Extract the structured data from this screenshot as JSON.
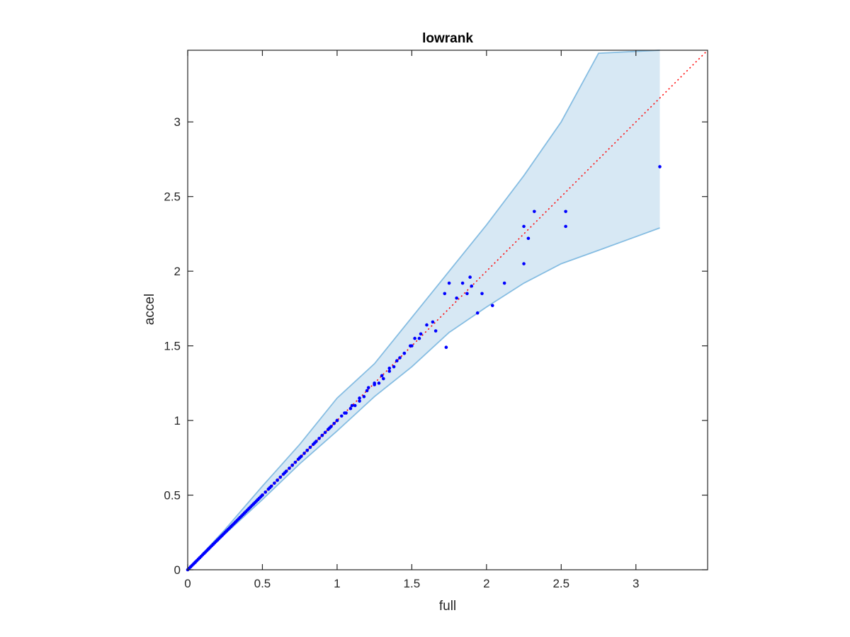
{
  "chart_data": {
    "type": "scatter",
    "title": "lowrank",
    "xlabel": "full",
    "ylabel": "accel",
    "xlim": [
      0,
      3.48
    ],
    "ylim": [
      0,
      3.48
    ],
    "xticks": [
      0,
      0.5,
      1,
      1.5,
      2,
      2.5,
      3
    ],
    "yticks": [
      0,
      0.5,
      1,
      1.5,
      2,
      2.5,
      3
    ],
    "xtick_labels": [
      "0",
      "0.5",
      "1",
      "1.5",
      "2",
      "2.5",
      "3"
    ],
    "ytick_labels": [
      "0",
      "0.5",
      "1",
      "1.5",
      "2",
      "2.5",
      "3"
    ],
    "grid": false,
    "colors": {
      "points": "#0000ff",
      "reference_line": "#ff0000",
      "band_fill": "#d7e8f4",
      "band_edge": "#86bde2",
      "axes": "#262626"
    },
    "reference_line": {
      "style": "dotted",
      "x": [
        0,
        3.48
      ],
      "y": [
        0,
        3.48
      ]
    },
    "band": {
      "x": [
        0,
        0.25,
        0.5,
        0.75,
        1.0,
        1.25,
        1.5,
        1.75,
        2.0,
        2.25,
        2.5,
        2.75,
        3.16
      ],
      "upper": [
        0,
        0.27,
        0.56,
        0.84,
        1.15,
        1.38,
        1.69,
        2.0,
        2.31,
        2.64,
        3.0,
        3.46,
        3.48
      ],
      "lower": [
        0,
        0.24,
        0.47,
        0.71,
        0.93,
        1.16,
        1.36,
        1.59,
        1.76,
        1.92,
        2.05,
        2.14,
        2.29
      ]
    },
    "series": [
      {
        "type": "scatter",
        "x": [
          0.0,
          0.01,
          0.02,
          0.03,
          0.04,
          0.05,
          0.06,
          0.07,
          0.08,
          0.09,
          0.1,
          0.11,
          0.12,
          0.13,
          0.14,
          0.15,
          0.16,
          0.17,
          0.18,
          0.19,
          0.2,
          0.21,
          0.22,
          0.23,
          0.24,
          0.25,
          0.26,
          0.27,
          0.28,
          0.29,
          0.3,
          0.31,
          0.32,
          0.33,
          0.34,
          0.35,
          0.36,
          0.37,
          0.38,
          0.39,
          0.4,
          0.41,
          0.42,
          0.43,
          0.44,
          0.45,
          0.46,
          0.47,
          0.48,
          0.49,
          0.5,
          0.52,
          0.54,
          0.56,
          0.58,
          0.6,
          0.62,
          0.64,
          0.66,
          0.68,
          0.7,
          0.72,
          0.74,
          0.76,
          0.78,
          0.8,
          0.82,
          0.84,
          0.86,
          0.88,
          0.9,
          0.92,
          0.94,
          0.96,
          0.98,
          1.0,
          1.03,
          1.06,
          1.09,
          1.12,
          1.15,
          1.18,
          1.21,
          1.25,
          1.28,
          1.31,
          1.35,
          1.38,
          1.42,
          1.45,
          1.49,
          1.52,
          1.56,
          1.6,
          1.64,
          1.66,
          1.72,
          1.73,
          1.75,
          1.8,
          1.84,
          1.87,
          1.89,
          1.9,
          1.94,
          1.97,
          2.04,
          2.12,
          2.25,
          2.25,
          2.28,
          2.32,
          2.53,
          2.53,
          3.16,
          0.02,
          0.05,
          0.08,
          0.11,
          0.14,
          0.17,
          0.2,
          0.23,
          0.26,
          0.29,
          0.32,
          0.35,
          0.38,
          0.41,
          0.44,
          0.47,
          0.5,
          0.55,
          0.6,
          0.65,
          0.7,
          0.75,
          0.8,
          0.85,
          0.9,
          0.95,
          1.0,
          1.05,
          1.1,
          1.15,
          1.2,
          1.25,
          1.3,
          1.35,
          1.4,
          1.45,
          1.5,
          1.55
        ],
        "y": [
          0.0,
          0.01,
          0.02,
          0.03,
          0.04,
          0.05,
          0.06,
          0.07,
          0.08,
          0.09,
          0.1,
          0.11,
          0.12,
          0.13,
          0.14,
          0.15,
          0.16,
          0.17,
          0.18,
          0.19,
          0.2,
          0.21,
          0.22,
          0.23,
          0.24,
          0.25,
          0.26,
          0.27,
          0.28,
          0.29,
          0.3,
          0.31,
          0.32,
          0.33,
          0.34,
          0.35,
          0.36,
          0.37,
          0.38,
          0.39,
          0.4,
          0.41,
          0.42,
          0.43,
          0.44,
          0.45,
          0.46,
          0.47,
          0.48,
          0.49,
          0.5,
          0.52,
          0.54,
          0.56,
          0.58,
          0.6,
          0.62,
          0.64,
          0.66,
          0.68,
          0.7,
          0.72,
          0.74,
          0.76,
          0.78,
          0.8,
          0.82,
          0.84,
          0.86,
          0.88,
          0.9,
          0.92,
          0.94,
          0.96,
          0.98,
          1.0,
          1.03,
          1.05,
          1.08,
          1.1,
          1.13,
          1.16,
          1.22,
          1.24,
          1.25,
          1.28,
          1.33,
          1.36,
          1.42,
          1.45,
          1.5,
          1.55,
          1.58,
          1.64,
          1.66,
          1.6,
          1.85,
          1.49,
          1.92,
          1.82,
          1.92,
          1.85,
          1.96,
          1.9,
          1.72,
          1.85,
          1.77,
          1.92,
          2.05,
          2.3,
          2.22,
          2.4,
          2.4,
          2.3,
          2.7,
          0.02,
          0.05,
          0.08,
          0.11,
          0.14,
          0.17,
          0.2,
          0.23,
          0.26,
          0.29,
          0.32,
          0.35,
          0.38,
          0.41,
          0.44,
          0.47,
          0.5,
          0.55,
          0.6,
          0.65,
          0.7,
          0.75,
          0.8,
          0.85,
          0.9,
          0.95,
          1.0,
          1.05,
          1.1,
          1.15,
          1.2,
          1.25,
          1.3,
          1.35,
          1.4,
          1.45,
          1.5,
          1.55
        ]
      }
    ]
  }
}
